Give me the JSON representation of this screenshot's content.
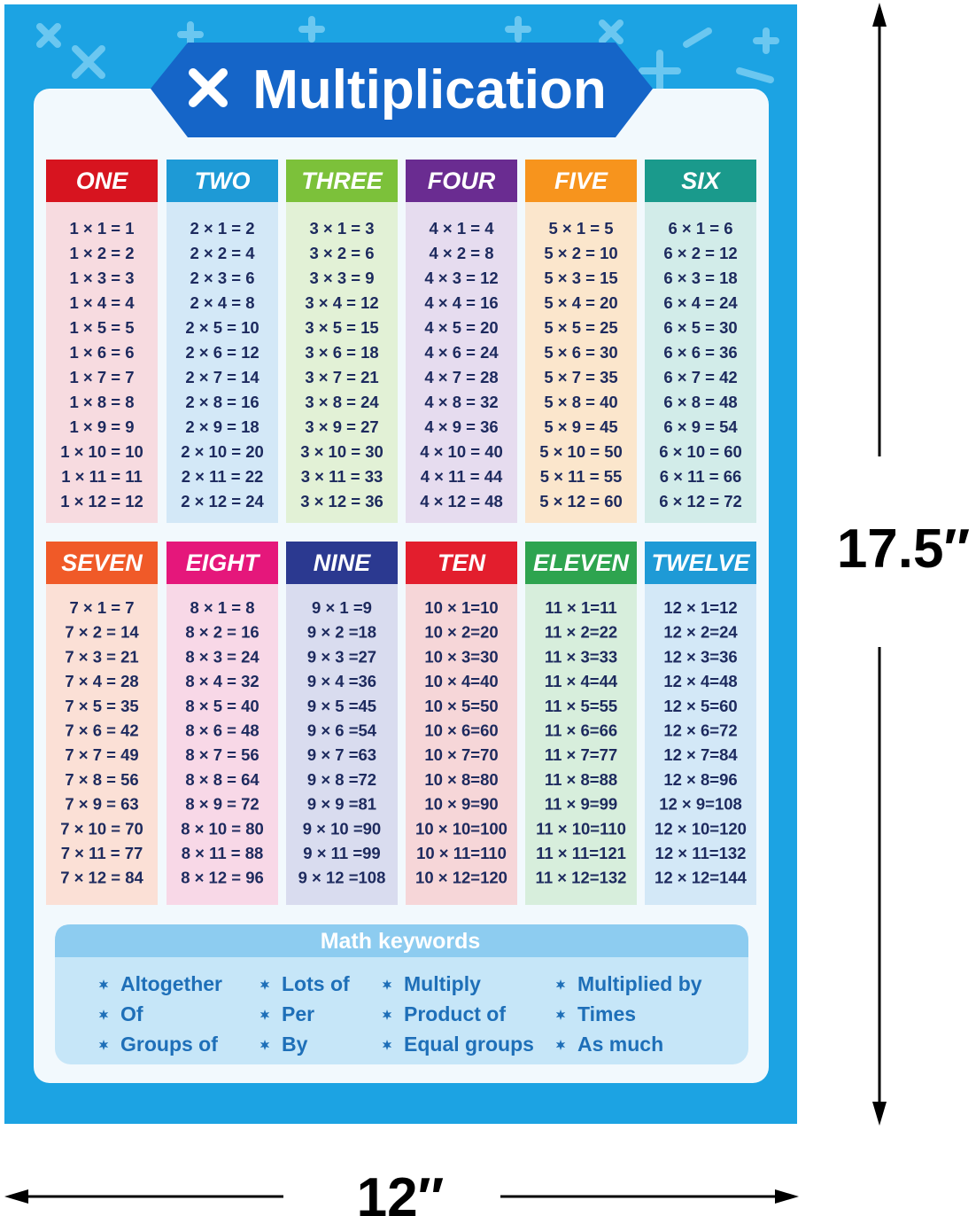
{
  "title": "Multiplication",
  "tables": [
    {
      "name": "ONE",
      "rows": [
        "1 × 1 = 1",
        "1 × 2 = 2",
        "1 × 3 = 3",
        "1 × 4 = 4",
        "1 × 5 = 5",
        "1 × 6 = 6",
        "1 × 7 = 7",
        "1 × 8 = 8",
        "1 × 9 = 9",
        "1 × 10 = 10",
        "1 × 11 = 11",
        "1 × 12 = 12"
      ]
    },
    {
      "name": "TWO",
      "rows": [
        "2 × 1 = 2",
        "2 × 2 = 4",
        "2 × 3 = 6",
        "2 × 4 = 8",
        "2 × 5 = 10",
        "2 × 6 = 12",
        "2 × 7 = 14",
        "2 × 8 = 16",
        "2 × 9 = 18",
        "2 × 10 = 20",
        "2 × 11 = 22",
        "2 × 12 = 24"
      ]
    },
    {
      "name": "THREE",
      "rows": [
        "3 × 1 = 3",
        "3 × 2 = 6",
        "3 × 3 = 9",
        "3 × 4 = 12",
        "3 × 5 = 15",
        "3 × 6 = 18",
        "3 × 7 = 21",
        "3 × 8 = 24",
        "3 × 9 = 27",
        "3 × 10 = 30",
        "3 × 11 = 33",
        "3 × 12 = 36"
      ]
    },
    {
      "name": "FOUR",
      "rows": [
        "4 × 1 = 4",
        "4 × 2 = 8",
        "4 × 3 = 12",
        "4 × 4 = 16",
        "4 × 5 = 20",
        "4 × 6 = 24",
        "4 × 7 = 28",
        "4 × 8 = 32",
        "4 × 9 = 36",
        "4 × 10 = 40",
        "4 × 11 = 44",
        "4 × 12 = 48"
      ]
    },
    {
      "name": "FIVE",
      "rows": [
        "5 × 1 = 5",
        "5 × 2 = 10",
        "5 × 3 = 15",
        "5 × 4 = 20",
        "5 × 5 = 25",
        "5 × 6 = 30",
        "5 × 7 = 35",
        "5 × 8 = 40",
        "5 × 9 = 45",
        "5 × 10 = 50",
        "5 × 11 = 55",
        "5 × 12 = 60"
      ]
    },
    {
      "name": "SIX",
      "rows": [
        "6 × 1 = 6",
        "6 × 2 = 12",
        "6 × 3 = 18",
        "6 × 4 = 24",
        "6 × 5 = 30",
        "6 × 6 = 36",
        "6 × 7 = 42",
        "6 × 8 = 48",
        "6 × 9 = 54",
        "6 × 10 = 60",
        "6 × 11 = 66",
        "6 × 12 = 72"
      ]
    },
    {
      "name": "SEVEN",
      "rows": [
        "7 × 1 = 7",
        "7 × 2 = 14",
        "7 × 3 = 21",
        "7 × 4 = 28",
        "7 × 5 = 35",
        "7 × 6 = 42",
        "7 × 7 = 49",
        "7 × 8 = 56",
        "7 × 9 = 63",
        "7 × 10 = 70",
        "7 × 11 = 77",
        "7 × 12 = 84"
      ]
    },
    {
      "name": "EIGHT",
      "rows": [
        "8 × 1 = 8",
        "8 × 2 = 16",
        "8 × 3 = 24",
        "8 × 4 = 32",
        "8 × 5 = 40",
        "8 × 6 = 48",
        "8 × 7 = 56",
        "8 × 8 = 64",
        "8 × 9 = 72",
        "8 × 10 = 80",
        "8 × 11 = 88",
        "8 × 12 = 96"
      ]
    },
    {
      "name": "NINE",
      "rows": [
        "9 × 1 =9",
        "9 × 2 =18",
        "9 × 3 =27",
        "9 × 4 =36",
        "9 × 5 =45",
        "9 × 6 =54",
        "9 × 7 =63",
        "9 × 8 =72",
        "9 × 9 =81",
        "9 × 10 =90",
        "9 × 11 =99",
        "9 × 12 =108"
      ]
    },
    {
      "name": "TEN",
      "rows": [
        "10 × 1=10",
        "10 × 2=20",
        "10 × 3=30",
        "10 × 4=40",
        "10 × 5=50",
        "10 × 6=60",
        "10 × 7=70",
        "10 × 8=80",
        "10 × 9=90",
        "10 × 10=100",
        "10 × 11=110",
        "10 × 12=120"
      ]
    },
    {
      "name": "ELEVEN",
      "rows": [
        "11 × 1=11",
        "11 × 2=22",
        "11 × 3=33",
        "11 × 4=44",
        "11 × 5=55",
        "11 × 6=66",
        "11 × 7=77",
        "11 × 8=88",
        "11 × 9=99",
        "11 × 10=110",
        "11 × 11=121",
        "11 × 12=132"
      ]
    },
    {
      "name": "TWELVE",
      "rows": [
        "12 × 1=12",
        "12 × 2=24",
        "12 × 3=36",
        "12 × 4=48",
        "12 × 5=60",
        "12 × 6=72",
        "12 × 7=84",
        "12 × 8=96",
        "12 × 9=108",
        "12 × 10=120",
        "12 × 11=132",
        "12 × 12=144"
      ]
    }
  ],
  "keywords": {
    "title": "Math keywords",
    "columns": [
      [
        "Altogether",
        "Of",
        "Groups of"
      ],
      [
        "Lots of",
        "Per",
        "By"
      ],
      [
        "Multiply",
        "Product of",
        "Equal groups"
      ],
      [
        "Multiplied by",
        "Times",
        "As much"
      ]
    ]
  },
  "dimensions": {
    "height": "17.5″",
    "width": "12″"
  }
}
